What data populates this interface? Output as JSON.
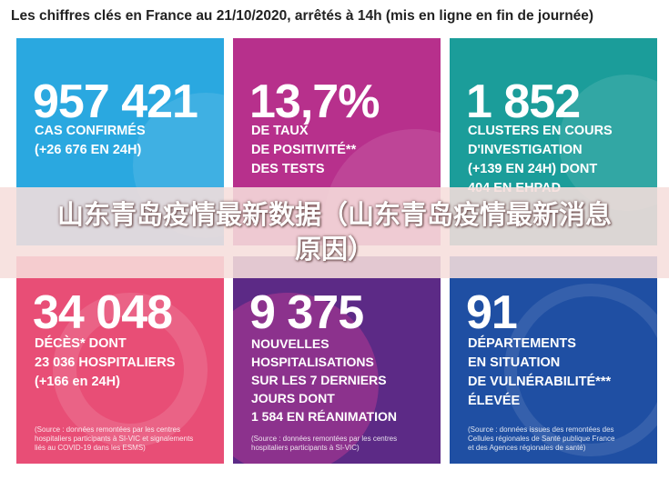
{
  "header": {
    "title": "Les chiffres clés en France au 21/10/2020, arrêtés à 14h (mis en ligne en fin de journée)"
  },
  "cards": [
    {
      "number": "957 421",
      "text": "CAS CONFIRMÉS\n(+26 676 EN 24H)",
      "source": "",
      "color": "#2aa8e0"
    },
    {
      "number": "13,7%",
      "text": "DE TAUX\nDE POSITIVITÉ**\nDES TESTS",
      "source": "",
      "color": "#b7308c"
    },
    {
      "number": "1 852",
      "text": "CLUSTERS EN COURS\nD'INVESTIGATION\n(+139 EN 24H) DONT\n404 EN EHPAD",
      "source": "",
      "color": "#1b9d9a"
    },
    {
      "number": "34 048",
      "text": "DÉCÈS* DONT\n23 036 HOSPITALIERS\n(+166 en 24H)",
      "source": "(Source : données remontées par les centres\nhospitaliers participants à SI-VIC et signalements\nliés au COVID-19 dans les ESMS)",
      "color": "#e84e76"
    },
    {
      "number": "9 375",
      "text": "NOUVELLES\nHOSPITALISATIONS\nSUR LES 7 DERNIERS\nJOURS DONT\n1 584 EN RÉANIMATION",
      "source": "(Source : données remontées par les centres\nhospitaliers participants à SI-VIC)",
      "color": "#5c2a86"
    },
    {
      "number": "91",
      "text": "DÉPARTEMENTS\nEN SITUATION\nDE VULNÉRABILITÉ***\nÉLEVÉE",
      "source": "(Source : données issues des remontées des\nCellules régionales de Santé publique France\net des Agences régionales de santé)",
      "color": "#1f4fa3"
    }
  ],
  "overlay": {
    "title": "山东青岛疫情最新数据（山东青岛疫情最新消息原因）"
  }
}
